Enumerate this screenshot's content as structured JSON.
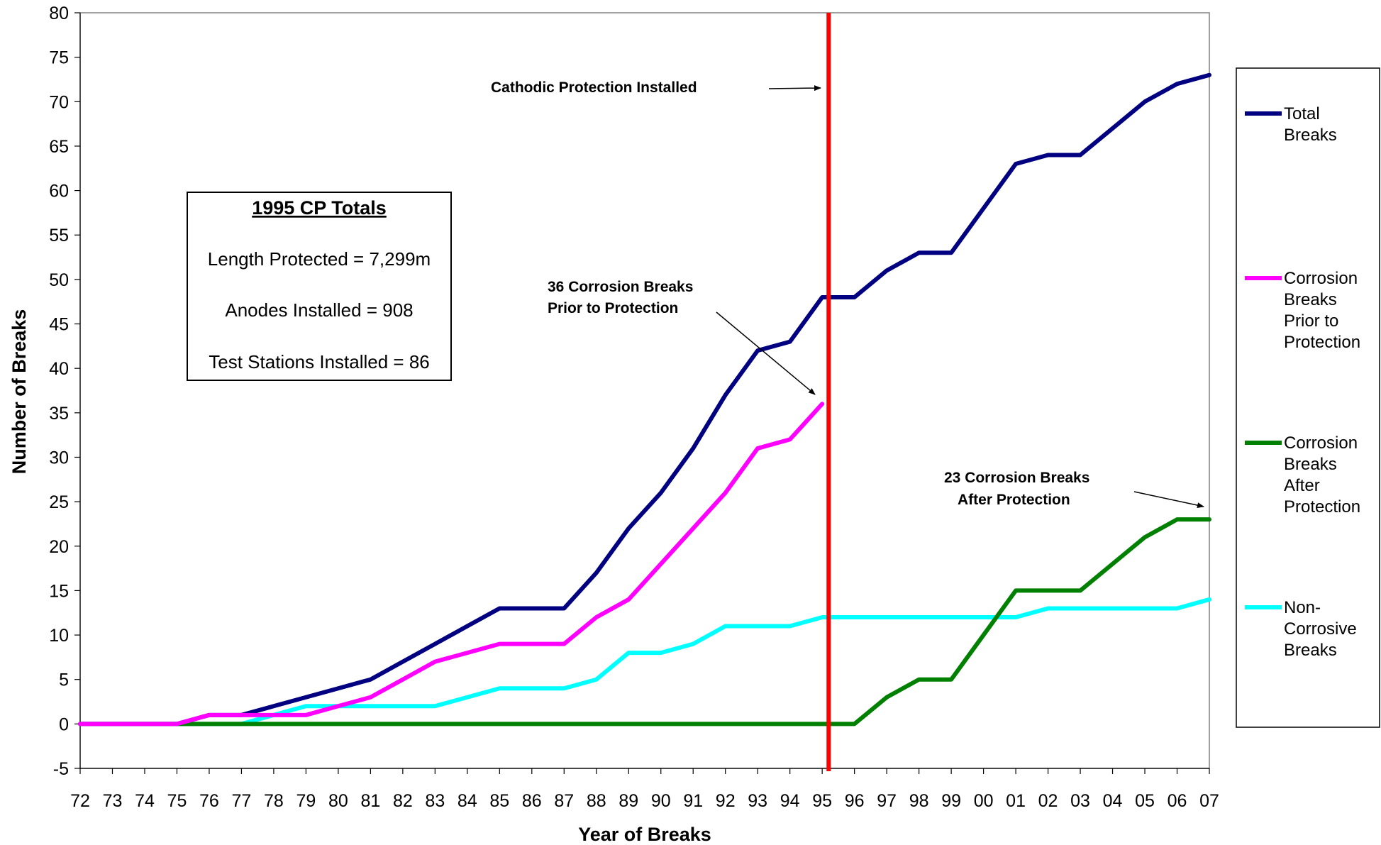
{
  "chart_data": {
    "type": "line",
    "xlabel": "Year of Breaks",
    "ylabel": "Number of Breaks",
    "ylim": [
      -5,
      80
    ],
    "yticks": [
      -5,
      0,
      5,
      10,
      15,
      20,
      25,
      30,
      35,
      40,
      45,
      50,
      55,
      60,
      65,
      70,
      75,
      80
    ],
    "categories": [
      "72",
      "73",
      "74",
      "75",
      "76",
      "77",
      "78",
      "79",
      "80",
      "81",
      "82",
      "83",
      "84",
      "85",
      "86",
      "87",
      "88",
      "89",
      "90",
      "91",
      "92",
      "93",
      "94",
      "95",
      "96",
      "97",
      "98",
      "99",
      "00",
      "01",
      "02",
      "03",
      "04",
      "05",
      "06",
      "07"
    ],
    "grid": false,
    "legend_position": "right",
    "series": [
      {
        "name": "Total Breaks",
        "legend_lines": [
          "Total",
          "Breaks"
        ],
        "color": "#000080",
        "values": [
          0,
          0,
          0,
          0,
          1,
          1,
          2,
          3,
          4,
          5,
          7,
          9,
          11,
          13,
          13,
          13,
          17,
          22,
          26,
          31,
          37,
          42,
          43,
          48,
          48,
          51,
          53,
          53,
          58,
          63,
          64,
          64,
          67,
          70,
          72,
          73
        ]
      },
      {
        "name": "Corrosion Breaks Prior to Protection",
        "legend_lines": [
          "Corrosion",
          "Breaks",
          "Prior to",
          "Protection"
        ],
        "color": "#ff00ff",
        "values": [
          0,
          0,
          0,
          0,
          1,
          1,
          1,
          1,
          2,
          3,
          5,
          7,
          8,
          9,
          9,
          9,
          12,
          14,
          18,
          22,
          26,
          31,
          32,
          36,
          null,
          null,
          null,
          null,
          null,
          null,
          null,
          null,
          null,
          null,
          null,
          null
        ]
      },
      {
        "name": "Corrosion Breaks After Protection",
        "legend_lines": [
          "Corrosion",
          "Breaks",
          "After",
          "Protection"
        ],
        "color": "#008000",
        "values": [
          0,
          0,
          0,
          0,
          0,
          0,
          0,
          0,
          0,
          0,
          0,
          0,
          0,
          0,
          0,
          0,
          0,
          0,
          0,
          0,
          0,
          0,
          0,
          0,
          0,
          3,
          5,
          5,
          10,
          15,
          15,
          15,
          18,
          21,
          23,
          23
        ]
      },
      {
        "name": "Non-Corrosive Breaks",
        "legend_lines": [
          "Non-",
          "Corrosive",
          "Breaks"
        ],
        "color": "#00ffff",
        "values": [
          0,
          0,
          0,
          0,
          0,
          0,
          1,
          2,
          2,
          2,
          2,
          2,
          3,
          4,
          4,
          4,
          5,
          8,
          8,
          9,
          11,
          11,
          11,
          12,
          12,
          12,
          12,
          12,
          12,
          12,
          13,
          13,
          13,
          13,
          13,
          14
        ]
      }
    ],
    "vertical_marker": {
      "category_index": 23.2,
      "color": "#ff0000"
    },
    "annotations": [
      {
        "id": "cp",
        "lines": [
          "Cathodic Protection Installed"
        ]
      },
      {
        "id": "prior",
        "lines": [
          "36 Corrosion Breaks",
          "Prior to Protection"
        ]
      },
      {
        "id": "after",
        "lines": [
          "23 Corrosion Breaks",
          "After Protection"
        ]
      }
    ],
    "info_box": {
      "title": "1995 CP Totals",
      "lines": [
        "Length Protected = 7,299m",
        "Anodes Installed = 908",
        "Test Stations Installed = 86"
      ]
    }
  }
}
